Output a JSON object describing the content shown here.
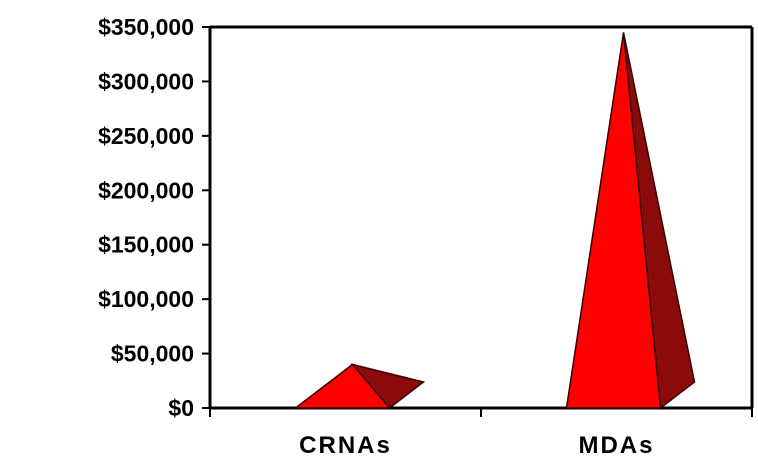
{
  "chart_data": {
    "type": "bar",
    "bar_shape": "3d-pyramid",
    "categories": [
      "CRNAs",
      "MDAs"
    ],
    "values": [
      40000,
      345000
    ],
    "ylim": [
      0,
      350000
    ],
    "y_ticks": [
      0,
      50000,
      100000,
      150000,
      200000,
      250000,
      300000,
      350000
    ],
    "y_tick_labels": [
      "$0",
      "$50,000",
      "$100,000",
      "$150,000",
      "$200,000",
      "$250,000",
      "$300,000",
      "$350,000"
    ],
    "grid": false,
    "legend": "none",
    "colors": {
      "front_face": "#ff0000",
      "side_face": "#8b0a0a",
      "outline": "#3a0000",
      "axis": "#000000",
      "frame": "#000000"
    }
  }
}
